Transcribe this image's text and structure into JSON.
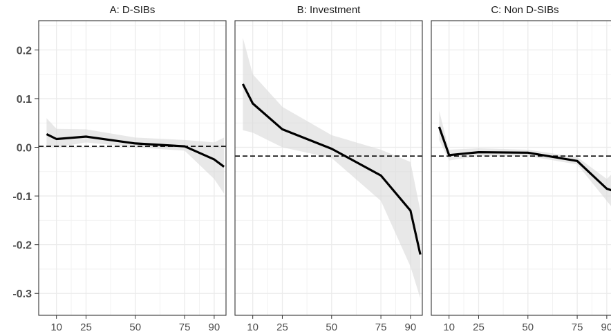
{
  "chart_data": {
    "type": "line",
    "y_ticks": [
      {
        "value": 0.2,
        "label": "0.2"
      },
      {
        "value": 0.1,
        "label": "0.1"
      },
      {
        "value": 0.0,
        "label": "0.0"
      },
      {
        "value": -0.1,
        "label": "-0.1"
      },
      {
        "value": -0.2,
        "label": "-0.2"
      },
      {
        "value": -0.3,
        "label": "-0.3"
      }
    ],
    "x_ticks": [
      {
        "value": 10,
        "label": "10"
      },
      {
        "value": 25,
        "label": "25"
      },
      {
        "value": 50,
        "label": "50"
      },
      {
        "value": 75,
        "label": "75"
      },
      {
        "value": 90,
        "label": "90"
      }
    ],
    "xlim": [
      1,
      96
    ],
    "ylim": [
      -0.345,
      0.26
    ],
    "grid": true,
    "band_color": "#d9d9d9",
    "line_color": "#000000",
    "panels": [
      {
        "title": "A: D-SIBs",
        "hline": 0.002,
        "x": [
          5,
          10,
          25,
          50,
          75,
          90,
          95
        ],
        "y": [
          0.027,
          0.017,
          0.022,
          0.008,
          0.002,
          -0.025,
          -0.04
        ],
        "lower": [
          0.003,
          0.0,
          0.01,
          0.0,
          -0.007,
          -0.065,
          -0.095
        ],
        "upper": [
          0.06,
          0.038,
          0.037,
          0.02,
          0.015,
          0.01,
          0.02
        ]
      },
      {
        "title": "B: Investment",
        "hline": -0.018,
        "x": [
          5,
          10,
          25,
          50,
          75,
          90,
          95
        ],
        "y": [
          0.13,
          0.09,
          0.037,
          -0.003,
          -0.058,
          -0.13,
          -0.22
        ],
        "lower": [
          0.035,
          0.03,
          0.0,
          -0.022,
          -0.11,
          -0.245,
          -0.31
        ],
        "upper": [
          0.225,
          0.15,
          0.083,
          0.025,
          -0.005,
          -0.03,
          -0.13
        ]
      },
      {
        "title": "C: Non D-SIBs",
        "hline": -0.018,
        "x": [
          5,
          10,
          25,
          50,
          75,
          90,
          95
        ],
        "y": [
          0.042,
          -0.016,
          -0.01,
          -0.011,
          -0.028,
          -0.085,
          -0.092
        ],
        "lower": [
          0.015,
          -0.027,
          -0.018,
          -0.018,
          -0.035,
          -0.11,
          -0.135
        ],
        "upper": [
          0.075,
          -0.005,
          -0.002,
          -0.005,
          -0.02,
          -0.065,
          -0.045
        ]
      }
    ]
  }
}
